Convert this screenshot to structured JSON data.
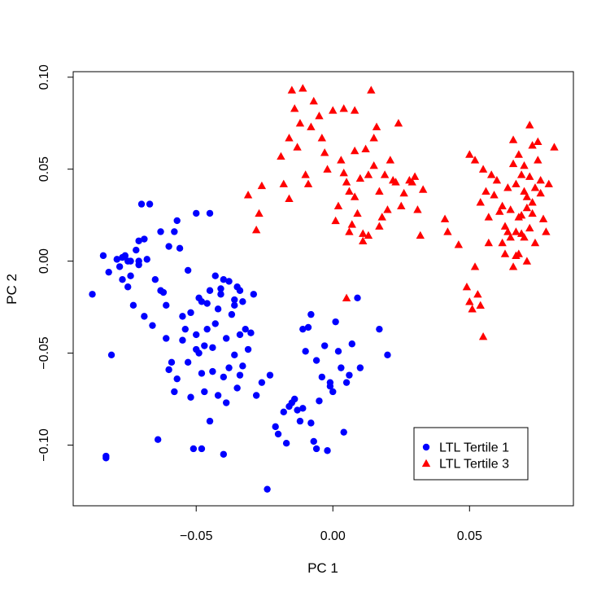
{
  "chart_data": {
    "type": "scatter",
    "xlabel": "PC 1",
    "ylabel": "PC 2",
    "xlim": [
      -0.095,
      0.088
    ],
    "ylim": [
      -0.133,
      0.103
    ],
    "x_ticks": [
      -0.05,
      0.0,
      0.05
    ],
    "x_tick_labels": [
      "−0.05",
      "0.00",
      "0.05"
    ],
    "y_ticks": [
      -0.1,
      -0.05,
      0.0,
      0.05,
      0.1
    ],
    "y_tick_labels": [
      "−0.10",
      "−0.05",
      "0.00",
      "0.05",
      "0.10"
    ],
    "grid": false,
    "legend_position": "bottom-right",
    "series": [
      {
        "name": "LTL Tertile 1",
        "marker": "circle",
        "color": "#0000FF",
        "points": [
          [
            -0.084,
            0.003
          ],
          [
            -0.082,
            -0.006
          ],
          [
            -0.081,
            -0.051
          ],
          [
            -0.083,
            -0.106
          ],
          [
            -0.083,
            -0.107
          ],
          [
            -0.088,
            -0.018
          ],
          [
            -0.078,
            -0.003
          ],
          [
            -0.077,
            0.002
          ],
          [
            -0.076,
            0.003
          ],
          [
            -0.075,
            0.0
          ],
          [
            -0.074,
            -0.008
          ],
          [
            -0.073,
            -0.024
          ],
          [
            -0.072,
            0.006
          ],
          [
            -0.071,
            0.011
          ],
          [
            -0.071,
            0.0
          ],
          [
            -0.07,
            0.031
          ],
          [
            -0.069,
            0.012
          ],
          [
            -0.069,
            -0.03
          ],
          [
            -0.068,
            0.001
          ],
          [
            -0.067,
            0.031
          ],
          [
            -0.066,
            -0.035
          ],
          [
            -0.065,
            -0.01
          ],
          [
            -0.064,
            -0.097
          ],
          [
            -0.063,
            0.016
          ],
          [
            -0.062,
            -0.017
          ],
          [
            -0.061,
            -0.042
          ],
          [
            -0.06,
            -0.059
          ],
          [
            -0.059,
            -0.055
          ],
          [
            -0.058,
            -0.071
          ],
          [
            -0.058,
            0.016
          ],
          [
            -0.057,
            0.022
          ],
          [
            -0.056,
            0.007
          ],
          [
            -0.055,
            -0.03
          ],
          [
            -0.054,
            -0.037
          ],
          [
            -0.053,
            -0.005
          ],
          [
            -0.052,
            -0.074
          ],
          [
            -0.051,
            -0.102
          ],
          [
            -0.05,
            0.026
          ],
          [
            -0.05,
            -0.048
          ],
          [
            -0.049,
            -0.05
          ],
          [
            -0.048,
            -0.061
          ],
          [
            -0.048,
            -0.102
          ],
          [
            -0.047,
            -0.071
          ],
          [
            -0.046,
            -0.023
          ],
          [
            -0.045,
            -0.087
          ],
          [
            -0.045,
            0.026
          ],
          [
            -0.044,
            -0.06
          ],
          [
            -0.043,
            -0.034
          ],
          [
            -0.042,
            -0.073
          ],
          [
            -0.041,
            -0.018
          ],
          [
            -0.04,
            -0.105
          ],
          [
            -0.04,
            -0.063
          ],
          [
            -0.039,
            -0.042
          ],
          [
            -0.038,
            -0.058
          ],
          [
            -0.037,
            -0.029
          ],
          [
            -0.036,
            -0.024
          ],
          [
            -0.035,
            -0.069
          ],
          [
            -0.034,
            -0.04
          ],
          [
            -0.033,
            -0.057
          ],
          [
            -0.032,
            -0.037
          ],
          [
            -0.031,
            -0.048
          ],
          [
            -0.03,
            -0.039
          ],
          [
            -0.029,
            -0.018
          ],
          [
            -0.028,
            -0.073
          ],
          [
            -0.046,
            -0.037
          ],
          [
            -0.047,
            -0.046
          ],
          [
            -0.052,
            -0.028
          ],
          [
            -0.053,
            -0.055
          ],
          [
            -0.055,
            -0.043
          ],
          [
            -0.057,
            -0.064
          ],
          [
            -0.049,
            -0.02
          ],
          [
            -0.045,
            -0.016
          ],
          [
            -0.043,
            -0.008
          ],
          [
            -0.042,
            -0.026
          ],
          [
            -0.041,
            -0.015
          ],
          [
            -0.038,
            -0.011
          ],
          [
            -0.036,
            -0.021
          ],
          [
            -0.035,
            -0.014
          ],
          [
            -0.034,
            -0.016
          ],
          [
            -0.033,
            -0.022
          ],
          [
            -0.04,
            -0.01
          ],
          [
            -0.044,
            -0.047
          ],
          [
            -0.048,
            -0.022
          ],
          [
            -0.039,
            -0.077
          ],
          [
            -0.036,
            -0.051
          ],
          [
            -0.034,
            -0.062
          ],
          [
            -0.06,
            0.008
          ],
          [
            -0.063,
            -0.016
          ],
          [
            -0.061,
            -0.024
          ],
          [
            -0.05,
            -0.04
          ],
          [
            -0.075,
            -0.014
          ],
          [
            -0.077,
            -0.01
          ],
          [
            -0.079,
            0.001
          ],
          [
            -0.074,
            0.0
          ],
          [
            -0.071,
            -0.002
          ],
          [
            -0.026,
            -0.066
          ],
          [
            -0.024,
            -0.124
          ],
          [
            -0.023,
            -0.062
          ],
          [
            -0.021,
            -0.09
          ],
          [
            -0.02,
            -0.094
          ],
          [
            -0.018,
            -0.082
          ],
          [
            -0.017,
            -0.099
          ],
          [
            -0.016,
            -0.079
          ],
          [
            -0.015,
            -0.077
          ],
          [
            -0.014,
            -0.075
          ],
          [
            -0.013,
            -0.081
          ],
          [
            -0.012,
            -0.087
          ],
          [
            -0.011,
            -0.08
          ],
          [
            -0.01,
            -0.049
          ],
          [
            -0.009,
            -0.036
          ],
          [
            -0.008,
            -0.088
          ],
          [
            -0.007,
            -0.098
          ],
          [
            -0.006,
            -0.102
          ],
          [
            -0.005,
            -0.076
          ],
          [
            -0.004,
            -0.063
          ],
          [
            -0.003,
            -0.046
          ],
          [
            -0.002,
            -0.103
          ],
          [
            -0.001,
            -0.066
          ],
          [
            0.0,
            -0.071
          ],
          [
            0.001,
            -0.033
          ],
          [
            0.002,
            -0.049
          ],
          [
            0.003,
            -0.058
          ],
          [
            0.004,
            -0.093
          ],
          [
            0.005,
            -0.066
          ],
          [
            0.006,
            -0.062
          ],
          [
            0.007,
            -0.045
          ],
          [
            0.009,
            -0.02
          ],
          [
            0.01,
            -0.058
          ],
          [
            0.017,
            -0.037
          ],
          [
            0.02,
            -0.051
          ],
          [
            -0.001,
            -0.068
          ],
          [
            -0.008,
            -0.029
          ],
          [
            -0.011,
            -0.037
          ],
          [
            -0.006,
            -0.054
          ]
        ]
      },
      {
        "name": "LTL Tertile 3",
        "marker": "triangle",
        "color": "#FF0000",
        "points": [
          [
            -0.031,
            0.036
          ],
          [
            -0.028,
            0.017
          ],
          [
            -0.027,
            0.026
          ],
          [
            -0.026,
            0.041
          ],
          [
            -0.016,
            0.034
          ],
          [
            -0.015,
            0.093
          ],
          [
            -0.014,
            0.083
          ],
          [
            -0.013,
            0.062
          ],
          [
            -0.012,
            0.075
          ],
          [
            -0.011,
            0.094
          ],
          [
            -0.01,
            0.047
          ],
          [
            -0.009,
            0.042
          ],
          [
            -0.008,
            0.073
          ],
          [
            -0.007,
            0.087
          ],
          [
            -0.005,
            0.079
          ],
          [
            -0.004,
            0.067
          ],
          [
            -0.003,
            0.059
          ],
          [
            -0.002,
            0.05
          ],
          [
            0.0,
            0.082
          ],
          [
            0.001,
            0.022
          ],
          [
            0.002,
            0.03
          ],
          [
            0.003,
            0.055
          ],
          [
            0.004,
            0.083
          ],
          [
            0.005,
            0.043
          ],
          [
            0.006,
            0.038
          ],
          [
            0.007,
            0.02
          ],
          [
            0.008,
            0.035
          ],
          [
            0.009,
            0.026
          ],
          [
            0.01,
            0.045
          ],
          [
            0.011,
            0.011
          ],
          [
            0.012,
            0.061
          ],
          [
            0.013,
            0.047
          ],
          [
            0.014,
            0.093
          ],
          [
            0.015,
            0.052
          ],
          [
            0.016,
            0.073
          ],
          [
            0.017,
            0.038
          ],
          [
            0.018,
            0.024
          ],
          [
            0.019,
            0.047
          ],
          [
            0.02,
            0.028
          ],
          [
            0.021,
            0.055
          ],
          [
            0.022,
            0.044
          ],
          [
            0.023,
            0.043
          ],
          [
            0.024,
            0.075
          ],
          [
            0.025,
            0.03
          ],
          [
            0.026,
            0.037
          ],
          [
            0.028,
            0.044
          ],
          [
            0.029,
            0.043
          ],
          [
            0.03,
            0.046
          ],
          [
            0.031,
            0.028
          ],
          [
            0.032,
            0.014
          ],
          [
            0.033,
            0.039
          ],
          [
            -0.019,
            0.057
          ],
          [
            -0.018,
            0.042
          ],
          [
            -0.016,
            0.067
          ],
          [
            0.004,
            0.048
          ],
          [
            0.006,
            0.016
          ],
          [
            0.008,
            0.06
          ],
          [
            0.011,
            0.015
          ],
          [
            0.013,
            0.014
          ],
          [
            0.015,
            0.067
          ],
          [
            0.017,
            0.019
          ],
          [
            0.008,
            0.082
          ],
          [
            0.005,
            -0.02
          ],
          [
            0.041,
            0.023
          ],
          [
            0.042,
            0.016
          ],
          [
            0.046,
            0.009
          ],
          [
            0.049,
            -0.014
          ],
          [
            0.05,
            -0.022
          ],
          [
            0.051,
            -0.026
          ],
          [
            0.052,
            -0.003
          ],
          [
            0.053,
            -0.018
          ],
          [
            0.054,
            -0.024
          ],
          [
            0.055,
            -0.041
          ],
          [
            0.057,
            0.01
          ],
          [
            0.05,
            0.058
          ],
          [
            0.052,
            0.055
          ],
          [
            0.054,
            0.032
          ],
          [
            0.055,
            0.05
          ],
          [
            0.056,
            0.038
          ],
          [
            0.057,
            0.024
          ],
          [
            0.058,
            0.047
          ],
          [
            0.059,
            0.036
          ],
          [
            0.06,
            0.044
          ],
          [
            0.061,
            0.027
          ],
          [
            0.062,
            0.03
          ],
          [
            0.063,
            0.019
          ],
          [
            0.064,
            0.04
          ],
          [
            0.065,
            0.013
          ],
          [
            0.066,
            0.053
          ],
          [
            0.066,
            0.066
          ],
          [
            0.067,
            0.042
          ],
          [
            0.067,
            0.003
          ],
          [
            0.068,
            0.058
          ],
          [
            0.068,
            0.024
          ],
          [
            0.069,
            0.047
          ],
          [
            0.069,
            0.015
          ],
          [
            0.07,
            0.038
          ],
          [
            0.07,
            0.052
          ],
          [
            0.071,
            0.035
          ],
          [
            0.071,
            0.029
          ],
          [
            0.072,
            0.046
          ],
          [
            0.072,
            0.074
          ],
          [
            0.073,
            0.063
          ],
          [
            0.073,
            0.032
          ],
          [
            0.074,
            0.04
          ],
          [
            0.074,
            0.01
          ],
          [
            0.075,
            0.065
          ],
          [
            0.075,
            0.055
          ],
          [
            0.076,
            0.037
          ],
          [
            0.076,
            0.044
          ],
          [
            0.077,
            0.023
          ],
          [
            0.078,
            0.016
          ],
          [
            0.079,
            0.042
          ],
          [
            0.081,
            0.062
          ],
          [
            0.062,
            0.01
          ],
          [
            0.064,
            0.016
          ],
          [
            0.063,
            0.004
          ],
          [
            0.066,
            -0.003
          ],
          [
            0.065,
            0.028
          ],
          [
            0.068,
            0.004
          ],
          [
            0.069,
            0.025
          ],
          [
            0.07,
            0.013
          ],
          [
            0.072,
            0.018
          ],
          [
            0.073,
            0.026
          ],
          [
            0.071,
            0.0
          ],
          [
            0.067,
            0.016
          ]
        ]
      }
    ]
  }
}
